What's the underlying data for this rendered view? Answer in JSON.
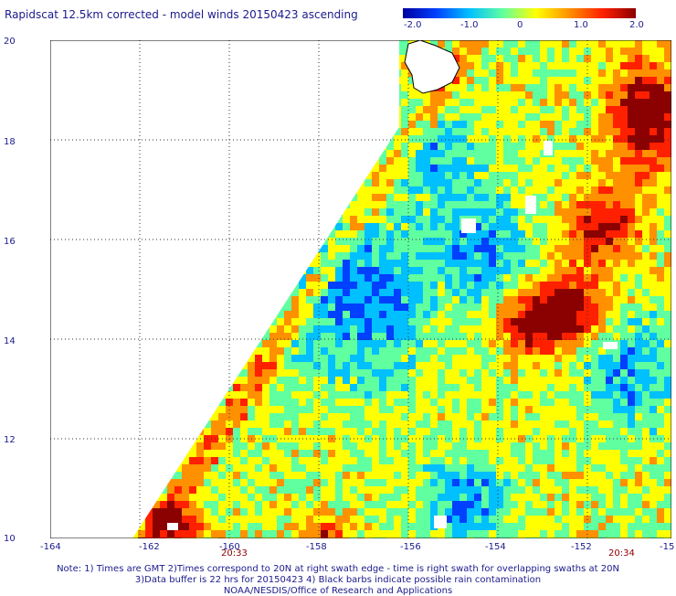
{
  "title": "Rapidscat 12.5km corrected - model winds 20150423 ascending",
  "colorbar": {
    "labels": [
      "-2.0",
      "-1.0",
      "0",
      "1.0",
      "2.0"
    ],
    "range": [
      -2.0,
      2.0
    ],
    "colors": [
      "#0000a0",
      "#0040ff",
      "#00c0ff",
      "#60ffa0",
      "#ffff00",
      "#ff9000",
      "#ff2000",
      "#8b0000"
    ]
  },
  "axes": {
    "lat_labels": [
      "20",
      "18",
      "16",
      "14",
      "12",
      "10"
    ],
    "lon_labels": [
      "-164",
      "-162",
      "-160",
      "-158",
      "-156",
      "-154",
      "-152",
      "-15"
    ]
  },
  "times": [
    "20:33",
    "20:34"
  ],
  "notes": [
    "Note: 1) Times are GMT 2)Times correspond to 20N at right swath edge - time is right swath for overlapping swaths at 20N",
    "3)Data buffer is 22 hrs for 20150423 4) Black barbs indicate possible rain contamination",
    "NOAA/NESDIS/Office of Research and Applications"
  ]
}
